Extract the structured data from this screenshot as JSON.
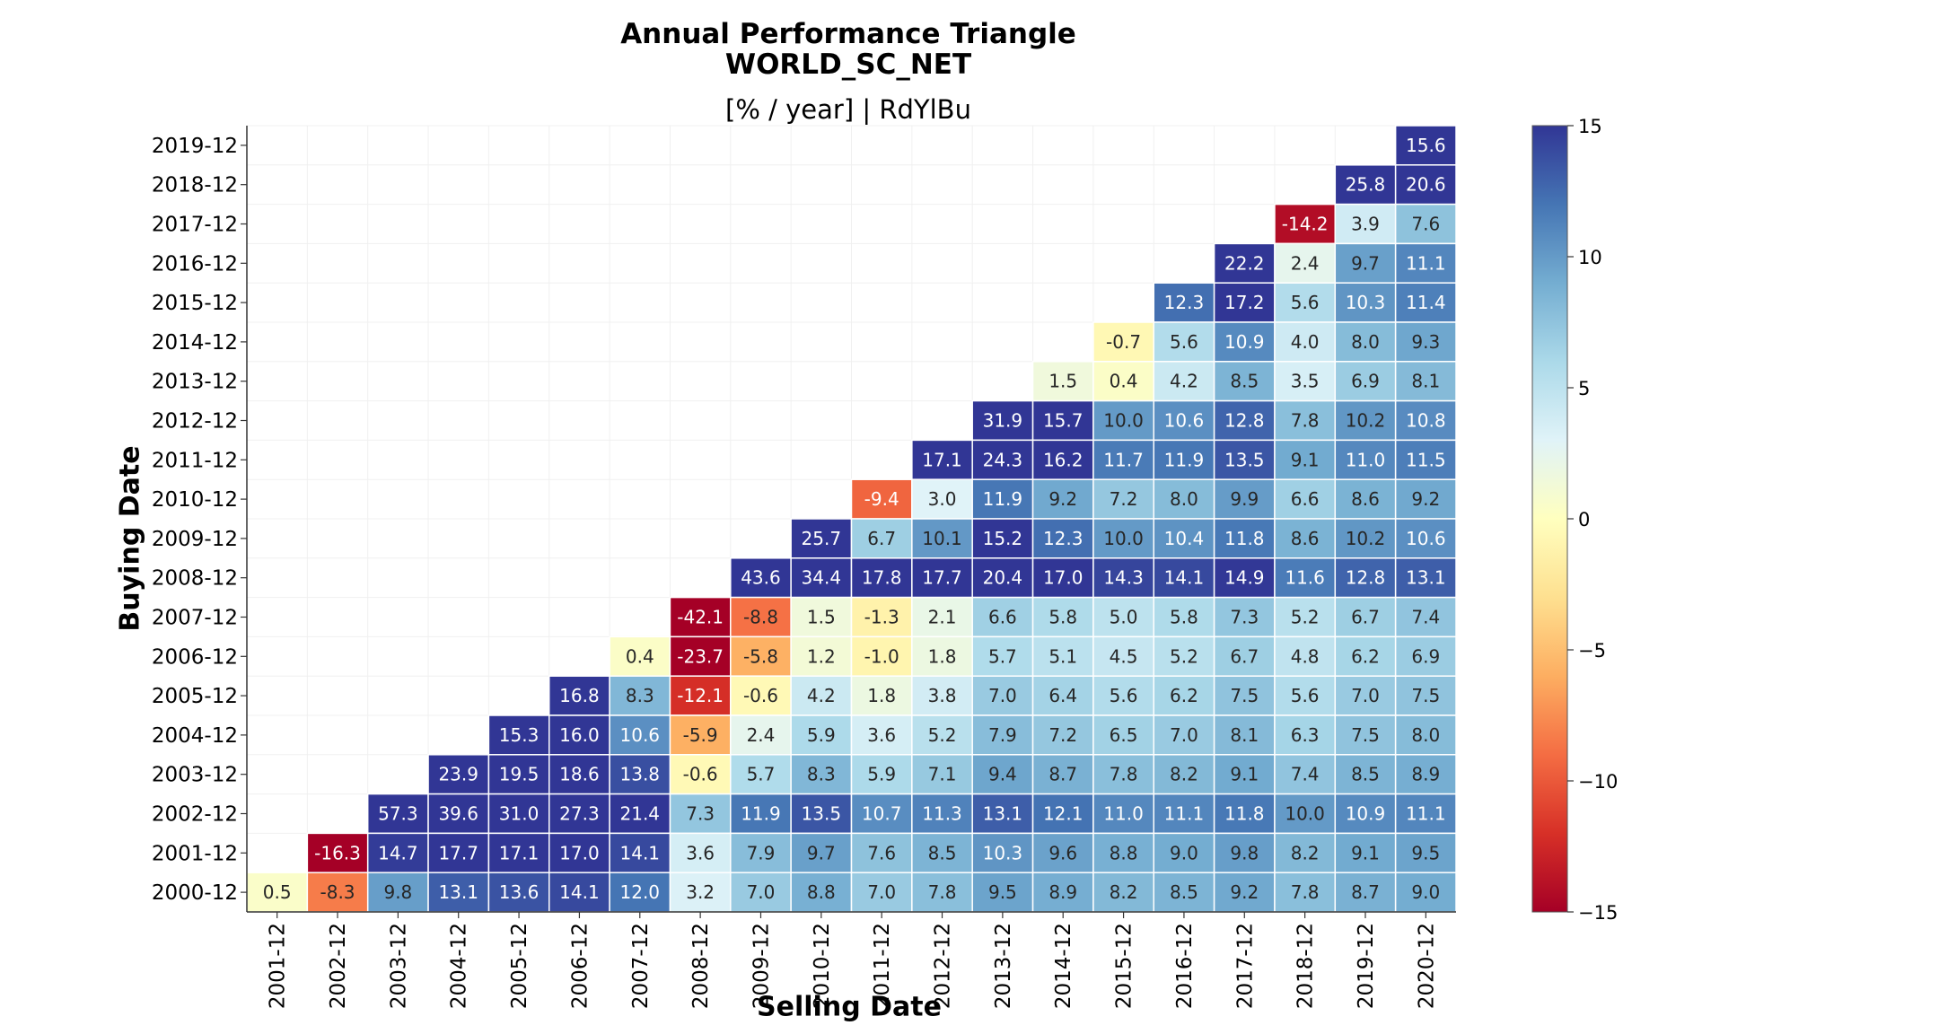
{
  "title_line1": "Annual Performance Triangle",
  "title_line2": "WORLD_SC_NET",
  "subtitle": "[% / year] | RdYlBu",
  "chart_data": {
    "type": "heatmap",
    "title": "Annual Performance Triangle WORLD_SC_NET",
    "subtitle": "[% / year] | RdYlBu",
    "xlabel": "Selling Date",
    "ylabel": "Buying Date",
    "colormap": "RdYlBu",
    "vmin": -15,
    "vmax": 15,
    "colorbar_ticks": [
      15,
      10,
      5,
      0,
      -5,
      -10,
      -15
    ],
    "colorbar_tick_labels": [
      "15",
      "10",
      "5",
      "0",
      "−5",
      "−10",
      "−15"
    ],
    "x_categories": [
      "2001-12",
      "2002-12",
      "2003-12",
      "2004-12",
      "2005-12",
      "2006-12",
      "2007-12",
      "2008-12",
      "2009-12",
      "2010-12",
      "2011-12",
      "2012-12",
      "2013-12",
      "2014-12",
      "2015-12",
      "2016-12",
      "2017-12",
      "2018-12",
      "2019-12",
      "2020-12"
    ],
    "y_categories": [
      "2019-12",
      "2018-12",
      "2017-12",
      "2016-12",
      "2015-12",
      "2014-12",
      "2013-12",
      "2012-12",
      "2011-12",
      "2010-12",
      "2009-12",
      "2008-12",
      "2007-12",
      "2006-12",
      "2005-12",
      "2004-12",
      "2003-12",
      "2002-12",
      "2001-12",
      "2000-12"
    ],
    "values": [
      [
        null,
        null,
        null,
        null,
        null,
        null,
        null,
        null,
        null,
        null,
        null,
        null,
        null,
        null,
        null,
        null,
        null,
        null,
        null,
        15.6
      ],
      [
        null,
        null,
        null,
        null,
        null,
        null,
        null,
        null,
        null,
        null,
        null,
        null,
        null,
        null,
        null,
        null,
        null,
        null,
        25.8,
        20.6
      ],
      [
        null,
        null,
        null,
        null,
        null,
        null,
        null,
        null,
        null,
        null,
        null,
        null,
        null,
        null,
        null,
        null,
        null,
        -14.2,
        3.9,
        7.6
      ],
      [
        null,
        null,
        null,
        null,
        null,
        null,
        null,
        null,
        null,
        null,
        null,
        null,
        null,
        null,
        null,
        null,
        22.2,
        2.4,
        9.7,
        11.1
      ],
      [
        null,
        null,
        null,
        null,
        null,
        null,
        null,
        null,
        null,
        null,
        null,
        null,
        null,
        null,
        null,
        12.3,
        17.2,
        5.6,
        10.3,
        11.4
      ],
      [
        null,
        null,
        null,
        null,
        null,
        null,
        null,
        null,
        null,
        null,
        null,
        null,
        null,
        null,
        -0.7,
        5.6,
        10.9,
        4.0,
        8.0,
        9.3
      ],
      [
        null,
        null,
        null,
        null,
        null,
        null,
        null,
        null,
        null,
        null,
        null,
        null,
        null,
        1.5,
        0.4,
        4.2,
        8.5,
        3.5,
        6.9,
        8.1
      ],
      [
        null,
        null,
        null,
        null,
        null,
        null,
        null,
        null,
        null,
        null,
        null,
        null,
        31.9,
        15.7,
        10.0,
        10.6,
        12.8,
        7.8,
        10.2,
        10.8
      ],
      [
        null,
        null,
        null,
        null,
        null,
        null,
        null,
        null,
        null,
        null,
        null,
        17.1,
        24.3,
        16.2,
        11.7,
        11.9,
        13.5,
        9.1,
        11.0,
        11.5
      ],
      [
        null,
        null,
        null,
        null,
        null,
        null,
        null,
        null,
        null,
        null,
        -9.4,
        3.0,
        11.9,
        9.2,
        7.2,
        8.0,
        9.9,
        6.6,
        8.6,
        9.2
      ],
      [
        null,
        null,
        null,
        null,
        null,
        null,
        null,
        null,
        null,
        25.7,
        6.7,
        10.1,
        15.2,
        12.3,
        10.0,
        10.4,
        11.8,
        8.6,
        10.2,
        10.6
      ],
      [
        null,
        null,
        null,
        null,
        null,
        null,
        null,
        null,
        43.6,
        34.4,
        17.8,
        17.7,
        20.4,
        17.0,
        14.3,
        14.1,
        14.9,
        11.6,
        12.8,
        13.1
      ],
      [
        null,
        null,
        null,
        null,
        null,
        null,
        null,
        -42.1,
        -8.8,
        1.5,
        -1.3,
        2.1,
        6.6,
        5.8,
        5.0,
        5.8,
        7.3,
        5.2,
        6.7,
        7.4
      ],
      [
        null,
        null,
        null,
        null,
        null,
        null,
        0.4,
        -23.7,
        -5.8,
        1.2,
        -1.0,
        1.8,
        5.7,
        5.1,
        4.5,
        5.2,
        6.7,
        4.8,
        6.2,
        6.9
      ],
      [
        null,
        null,
        null,
        null,
        null,
        16.8,
        8.3,
        -12.1,
        -0.6,
        4.2,
        1.8,
        3.8,
        7.0,
        6.4,
        5.6,
        6.2,
        7.5,
        5.6,
        7.0,
        7.5
      ],
      [
        null,
        null,
        null,
        null,
        15.3,
        16.0,
        10.6,
        -5.9,
        2.4,
        5.9,
        3.6,
        5.2,
        7.9,
        7.2,
        6.5,
        7.0,
        8.1,
        6.3,
        7.5,
        8.0
      ],
      [
        null,
        null,
        null,
        23.9,
        19.5,
        18.6,
        13.8,
        -0.6,
        5.7,
        8.3,
        5.9,
        7.1,
        9.4,
        8.7,
        7.8,
        8.2,
        9.1,
        7.4,
        8.5,
        8.9
      ],
      [
        null,
        null,
        57.3,
        39.6,
        31.0,
        27.3,
        21.4,
        7.3,
        11.9,
        13.5,
        10.7,
        11.3,
        13.1,
        12.1,
        11.0,
        11.1,
        11.8,
        10.0,
        10.9,
        11.1
      ],
      [
        null,
        -16.3,
        14.7,
        17.7,
        17.1,
        17.0,
        14.1,
        3.6,
        7.9,
        9.7,
        7.6,
        8.5,
        10.3,
        9.6,
        8.8,
        9.0,
        9.8,
        8.2,
        9.1,
        9.5
      ],
      [
        0.5,
        -8.3,
        9.8,
        13.1,
        13.6,
        14.1,
        12.0,
        3.2,
        7.0,
        8.8,
        7.0,
        7.8,
        9.5,
        8.9,
        8.2,
        8.5,
        9.2,
        7.8,
        8.7,
        9.0
      ]
    ]
  }
}
